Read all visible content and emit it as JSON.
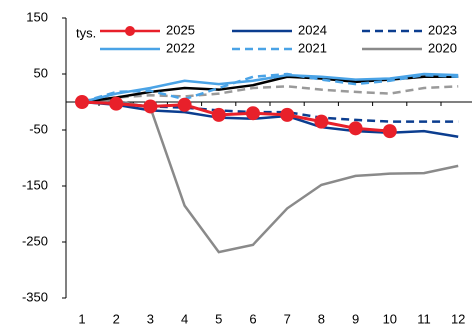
{
  "chart_data": {
    "type": "line",
    "y_unit_label": "tys.",
    "categories": [
      "1",
      "2",
      "3",
      "4",
      "5",
      "6",
      "7",
      "8",
      "9",
      "10",
      "11",
      "12"
    ],
    "ylim": [
      -350,
      150
    ],
    "yticks": [
      -350,
      -250,
      -150,
      -50,
      50,
      150
    ],
    "series": [
      {
        "name": "2025",
        "color": "#e8202a",
        "style": "solid",
        "markers": true,
        "values": [
          0,
          -3,
          -8,
          -5,
          -23,
          -20,
          -23,
          -35,
          -47,
          -52,
          null,
          null
        ]
      },
      {
        "name": "2024",
        "color": "#0b3d8f",
        "style": "solid",
        "values": [
          0,
          -5,
          -15,
          -18,
          -28,
          -30,
          -25,
          -45,
          -52,
          -55,
          -52,
          -62
        ]
      },
      {
        "name": "2023",
        "color": "#0b3d8f",
        "style": "dashed",
        "values": [
          0,
          -2,
          -8,
          -10,
          -15,
          -18,
          -18,
          -28,
          -32,
          -35,
          -35,
          -35
        ]
      },
      {
        "name": "2022",
        "color": "#4aa3e6",
        "style": "solid",
        "values": [
          0,
          15,
          25,
          38,
          32,
          38,
          48,
          45,
          40,
          42,
          50,
          48
        ]
      },
      {
        "name": "2021",
        "color": "#4aa3e6",
        "style": "dashed",
        "values": [
          0,
          18,
          20,
          5,
          25,
          45,
          50,
          40,
          32,
          38,
          48,
          45
        ]
      },
      {
        "name": "2020",
        "color": "#8a8a8a",
        "style": "solid",
        "values": [
          0,
          2,
          -10,
          -185,
          -268,
          -255,
          -190,
          -148,
          -132,
          -128,
          -127,
          -114
        ]
      },
      {
        "color": "#000000",
        "style": "solid",
        "values": [
          0,
          8,
          18,
          25,
          22,
          30,
          45,
          42,
          36,
          40,
          45,
          45
        ]
      },
      {
        "color": "#9a9a9a",
        "style": "dashed",
        "values": [
          0,
          8,
          12,
          10,
          15,
          25,
          28,
          22,
          18,
          15,
          25,
          28
        ]
      }
    ]
  }
}
